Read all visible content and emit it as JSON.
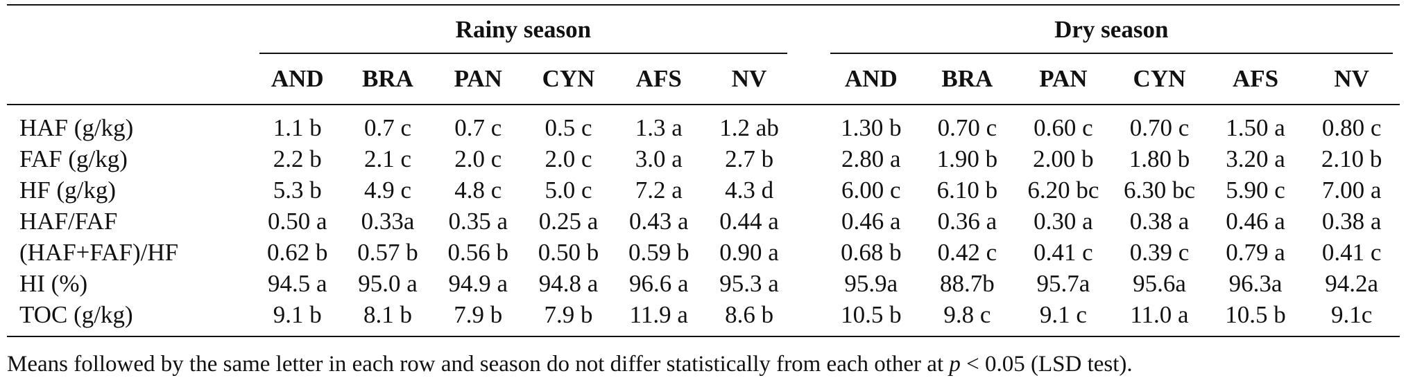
{
  "table": {
    "seasons": {
      "rainy": "Rainy season",
      "dry": "Dry season"
    },
    "rainy_columns": [
      "AND",
      "BRA",
      "PAN",
      "CYN",
      "AFS",
      "NV"
    ],
    "dry_columns": [
      "AND",
      "BRA",
      "PAN",
      "CYN",
      "AFS",
      "NV"
    ],
    "rows": [
      {
        "label": "HAF (g/kg)",
        "rainy": [
          "1.1 b",
          "0.7 c",
          "0.7 c",
          "0.5 c",
          "1.3 a",
          "1.2 ab"
        ],
        "dry": [
          "1.30 b",
          "0.70 c",
          "0.60 c",
          "0.70 c",
          "1.50 a",
          "0.80 c"
        ]
      },
      {
        "label": "FAF (g/kg)",
        "rainy": [
          "2.2 b",
          "2.1 c",
          "2.0 c",
          "2.0 c",
          "3.0 a",
          "2.7 b"
        ],
        "dry": [
          "2.80 a",
          "1.90 b",
          "2.00 b",
          "1.80 b",
          "3.20 a",
          "2.10 b"
        ]
      },
      {
        "label": "HF (g/kg)",
        "rainy": [
          "5.3 b",
          "4.9 c",
          "4.8 c",
          "5.0 c",
          "7.2 a",
          "4.3 d"
        ],
        "dry": [
          "6.00 c",
          "6.10 b",
          "6.20 bc",
          "6.30 bc",
          "5.90 c",
          "7.00 a"
        ]
      },
      {
        "label": "HAF/FAF",
        "rainy": [
          "0.50 a",
          "0.33a",
          "0.35 a",
          "0.25 a",
          "0.43 a",
          "0.44 a"
        ],
        "dry": [
          "0.46 a",
          "0.36 a",
          "0.30 a",
          "0.38 a",
          "0.46 a",
          "0.38 a"
        ]
      },
      {
        "label": "(HAF+FAF)/HF",
        "rainy": [
          "0.62 b",
          "0.57 b",
          "0.56 b",
          "0.50 b",
          "0.59 b",
          "0.90 a"
        ],
        "dry": [
          "0.68 b",
          "0.42 c",
          "0.41 c",
          "0.39 c",
          "0.79 a",
          "0.41 c"
        ]
      },
      {
        "label": "HI (%)",
        "rainy": [
          "94.5 a",
          "95.0 a",
          "94.9 a",
          "94.8 a",
          "96.6 a",
          "95.3 a"
        ],
        "dry": [
          "95.9a",
          "88.7b",
          "95.7a",
          "95.6a",
          "96.3a",
          "94.2a"
        ]
      },
      {
        "label": "TOC (g/kg)",
        "rainy": [
          "9.1 b",
          "8.1 b",
          "7.9 b",
          "7.9 b",
          "11.9 a",
          "8.6 b"
        ],
        "dry": [
          "10.5 b",
          "9.8 c",
          "9.1 c",
          "11.0 a",
          "10.5 b",
          "9.1c"
        ]
      }
    ]
  },
  "footnote": {
    "before": "Means followed by the same letter in each row and season do not differ statistically from each other at ",
    "italic": "p",
    "after": " < 0.05 (LSD test)."
  }
}
